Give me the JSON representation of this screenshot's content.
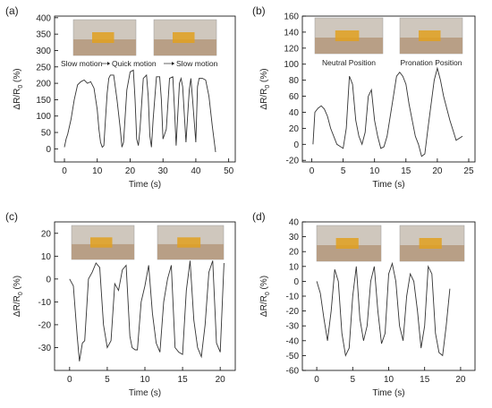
{
  "chart_data": [
    {
      "id": "a",
      "panel_label": "(a)",
      "type": "line",
      "xlabel": "Time (s)",
      "ylabel_main": "ΔR/R",
      "ylabel_sub": "0",
      "ylabel_tail": " (%)",
      "xlim": [
        -3,
        52
      ],
      "ylim": [
        -40,
        405
      ],
      "xticks": [
        0,
        10,
        20,
        30,
        40,
        50
      ],
      "yticks": [
        0,
        50,
        100,
        150,
        200,
        250,
        300,
        350,
        400
      ],
      "captions": [
        "Slow motion",
        "Quick motion",
        "Slow motion"
      ],
      "series": [
        {
          "x": [
            0,
            0.5,
            1,
            2,
            3,
            4,
            5,
            6,
            7,
            8,
            9,
            10,
            10.5,
            11,
            11.5,
            12,
            12.5,
            13,
            13.5,
            14,
            15,
            16,
            17,
            17.5,
            18,
            19,
            20,
            21,
            21.5,
            22,
            22.5,
            23,
            24,
            25,
            25.5,
            26,
            26.5,
            27,
            28,
            29,
            29.5,
            30,
            31,
            32,
            33,
            33.5,
            34,
            35,
            35.5,
            36,
            37,
            38,
            38.5,
            39,
            40,
            40.5,
            41,
            42,
            43,
            44,
            45,
            46
          ],
          "y": [
            5,
            30,
            45,
            90,
            150,
            195,
            205,
            210,
            200,
            205,
            185,
            120,
            60,
            20,
            5,
            10,
            90,
            170,
            215,
            225,
            225,
            150,
            60,
            5,
            20,
            180,
            235,
            240,
            150,
            30,
            10,
            60,
            215,
            225,
            160,
            40,
            5,
            90,
            220,
            220,
            150,
            30,
            60,
            215,
            220,
            120,
            10,
            200,
            215,
            190,
            20,
            180,
            215,
            150,
            20,
            190,
            215,
            215,
            210,
            160,
            70,
            -10
          ]
        }
      ]
    },
    {
      "id": "b",
      "panel_label": "(b)",
      "type": "line",
      "xlabel": "Time (s)",
      "ylabel_main": "ΔR/R",
      "ylabel_sub": "0",
      "ylabel_tail": " (%)",
      "xlim": [
        -1.5,
        26
      ],
      "ylim": [
        -22,
        160
      ],
      "xticks": [
        0,
        5,
        10,
        15,
        20,
        25
      ],
      "yticks": [
        -20,
        0,
        20,
        40,
        60,
        80,
        100,
        120,
        140,
        160
      ],
      "captions": [
        "Neutral Position",
        "Pronation Position"
      ],
      "series": [
        {
          "x": [
            0.2,
            0.5,
            1,
            1.5,
            2,
            2.5,
            3,
            4,
            5,
            5.5,
            6,
            6.5,
            7,
            7.5,
            8,
            8.5,
            9,
            9.5,
            10,
            10.5,
            11,
            11.5,
            12,
            13,
            13.5,
            14,
            14.5,
            15,
            15.5,
            16,
            16.5,
            17,
            17.5,
            18,
            18.5,
            19,
            19.5,
            20,
            20.5,
            21,
            22,
            23,
            24
          ],
          "y": [
            0,
            40,
            45,
            48,
            44,
            35,
            20,
            0,
            -5,
            20,
            85,
            75,
            30,
            10,
            0,
            15,
            60,
            68,
            30,
            10,
            -5,
            -3,
            10,
            60,
            85,
            90,
            85,
            75,
            50,
            30,
            10,
            0,
            -15,
            -12,
            20,
            50,
            80,
            95,
            80,
            60,
            30,
            5,
            10
          ]
        }
      ]
    },
    {
      "id": "c",
      "panel_label": "(c)",
      "type": "line",
      "xlabel": "Time (s)",
      "ylabel_main": "ΔR/R",
      "ylabel_sub": "0",
      "ylabel_tail": " (%)",
      "xlim": [
        -2,
        22
      ],
      "ylim": [
        -40,
        25
      ],
      "xticks": [
        0,
        5,
        10,
        15,
        20
      ],
      "yticks": [
        -30,
        -20,
        -10,
        0,
        10,
        20
      ],
      "captions": [],
      "series": [
        {
          "x": [
            0,
            0.5,
            1,
            1.3,
            1.7,
            2,
            2.5,
            3,
            3.5,
            4,
            4.5,
            5,
            5.5,
            6,
            6.5,
            7,
            7.5,
            8,
            8.3,
            8.7,
            9,
            9.5,
            10,
            10.5,
            11,
            11.5,
            12,
            12.5,
            13,
            13.5,
            14,
            14.5,
            15,
            15.5,
            16,
            16.5,
            17,
            17.5,
            18,
            18.5,
            19,
            19.5,
            20,
            20.5
          ],
          "y": [
            0,
            -3,
            -25,
            -36,
            -28,
            -27,
            0,
            3,
            7,
            5,
            -20,
            -30,
            -27,
            -2,
            -5,
            4,
            6,
            -25,
            -30,
            -31,
            -31,
            -10,
            -3,
            6,
            -15,
            -28,
            -32,
            -10,
            0,
            6,
            -30,
            -32,
            -33,
            -5,
            8,
            -18,
            -30,
            -34,
            -20,
            3,
            8,
            -28,
            -32,
            7
          ]
        }
      ]
    },
    {
      "id": "d",
      "panel_label": "(d)",
      "type": "line",
      "xlabel": "Time (s)",
      "ylabel_main": "ΔR/R",
      "ylabel_sub": "0",
      "ylabel_tail": " (%)",
      "xlim": [
        -2,
        22
      ],
      "ylim": [
        -60,
        40
      ],
      "xticks": [
        0,
        5,
        10,
        15,
        20
      ],
      "yticks": [
        -60,
        -50,
        -40,
        -30,
        -20,
        -10,
        0,
        10,
        20,
        30,
        40
      ],
      "captions": [],
      "series": [
        {
          "x": [
            0,
            0.5,
            1,
            1.5,
            2,
            2.5,
            3,
            3.5,
            4,
            4.5,
            5,
            5.5,
            6,
            6.5,
            7,
            7.5,
            8,
            8.5,
            9,
            9.5,
            10,
            10.5,
            11,
            11.5,
            12,
            12.5,
            13,
            13.5,
            14,
            14.5,
            15,
            15.5,
            16,
            16.5,
            17,
            17.5,
            18,
            18.5
          ],
          "y": [
            0,
            -8,
            -25,
            -40,
            -20,
            8,
            0,
            -35,
            -50,
            -45,
            -10,
            10,
            -25,
            -40,
            -30,
            0,
            10,
            -20,
            -42,
            -35,
            5,
            12,
            0,
            -30,
            -40,
            -10,
            5,
            0,
            -20,
            -45,
            -30,
            10,
            5,
            -35,
            -48,
            -50,
            -30,
            -5
          ]
        }
      ]
    }
  ]
}
